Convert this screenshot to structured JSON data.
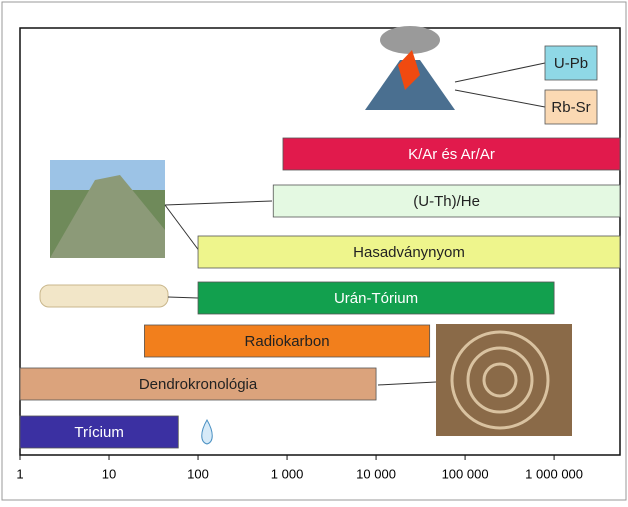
{
  "chart_data": {
    "type": "range-bar",
    "xscale": "log",
    "xlim": [
      1,
      5500000
    ],
    "xticks": [
      1,
      10,
      100,
      {
        "value": 1000,
        "label": "1 000"
      },
      {
        "value": 10000,
        "label": "10 000"
      },
      {
        "value": 100000,
        "label": "100 000"
      },
      {
        "value": 1000000,
        "label": "1 000 000"
      }
    ],
    "series": [
      {
        "name": "U-Pb",
        "color": "#8fd8e6",
        "values": [
          900000,
          3500000
        ]
      },
      {
        "name": "Rb-Sr",
        "color": "#fbd9b3",
        "values": [
          900000,
          3500000
        ]
      },
      {
        "name": "K/Ar és Ar/Ar",
        "color": "#e11a4c",
        "values": [
          900,
          5500000
        ]
      },
      {
        "name": "(U-Th)/He",
        "color": "#e4f9e2",
        "values": [
          700,
          5500000
        ]
      },
      {
        "name": "Hasadványnyom",
        "color": "#eef58c",
        "values": [
          100,
          5500000
        ]
      },
      {
        "name": "Urán-Tórium",
        "color": "#12a04e",
        "values": [
          100,
          1000000
        ]
      },
      {
        "name": "Radiokarbon",
        "color": "#f27f1c",
        "values": [
          25,
          40000
        ]
      },
      {
        "name": "Dendrokronológia",
        "color": "#dba37c",
        "values": [
          1,
          10000
        ]
      },
      {
        "name": "Trícium",
        "color": "#3b30a2",
        "values": [
          1,
          60
        ]
      }
    ]
  }
}
